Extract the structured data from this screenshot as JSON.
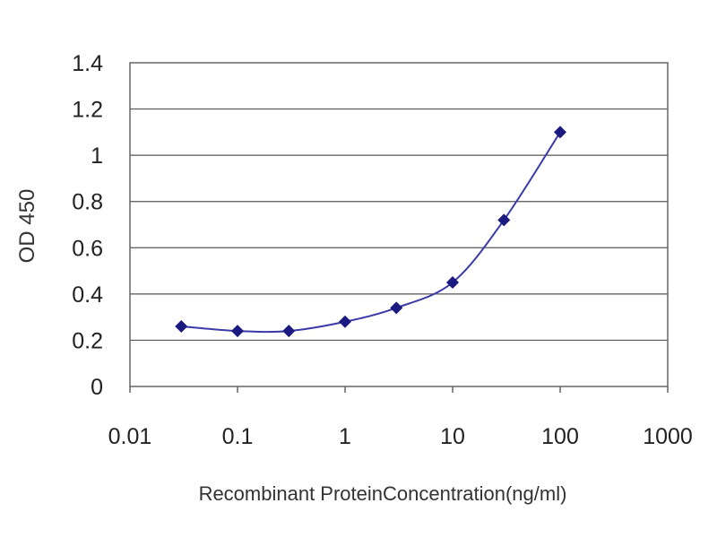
{
  "chart_data": {
    "type": "line",
    "title": "",
    "xlabel": "Recombinant ProteinConcentration(ng/ml)",
    "ylabel": "OD 450",
    "x_scale": "log",
    "xlim": [
      0.01,
      1000
    ],
    "ylim": [
      0,
      1.4
    ],
    "x_ticks": [
      "0.01",
      "0.1",
      "1",
      "10",
      "100",
      "1000"
    ],
    "y_ticks": [
      "0",
      "0.2",
      "0.4",
      "0.6",
      "0.8",
      "1",
      "1.2",
      "1.4"
    ],
    "grid": true,
    "legend": "none",
    "series": [
      {
        "x": [
          0.03,
          0.1,
          0.3,
          1,
          3,
          10,
          30,
          100
        ],
        "y": [
          0.26,
          0.24,
          0.24,
          0.28,
          0.34,
          0.45,
          0.72,
          1.1
        ]
      }
    ],
    "colors": {
      "line": "#3a3aa8",
      "marker": "#1a1a80",
      "grid": "#555555",
      "frame": "#666666"
    }
  }
}
